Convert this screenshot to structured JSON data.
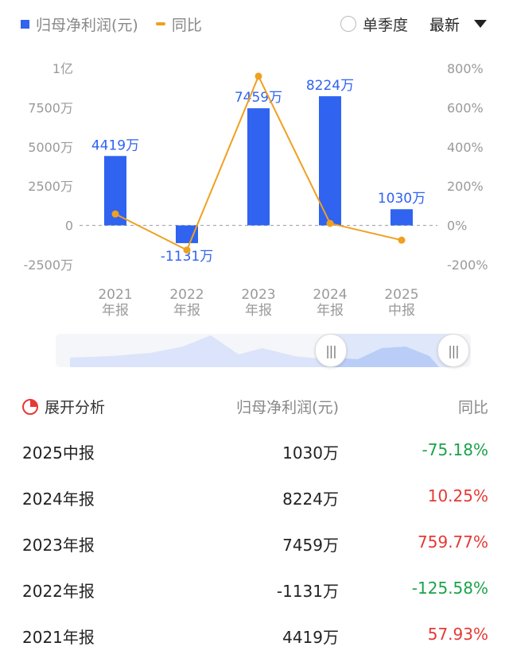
{
  "legend": {
    "bar_label": "归母净利润(元)",
    "line_label": "同比",
    "bar_color": "#2f63f0",
    "line_color": "#f0a020"
  },
  "toggle": {
    "label": "单季度"
  },
  "dropdown": {
    "label": "最新"
  },
  "chart_data": {
    "type": "bar",
    "categories": [
      [
        "2021",
        "年报"
      ],
      [
        "2022",
        "年报"
      ],
      [
        "2023",
        "年报"
      ],
      [
        "2024",
        "年报"
      ],
      [
        "2025",
        "中报"
      ]
    ],
    "series": [
      {
        "values": [
          4419,
          -1131,
          7459,
          8224,
          1030
        ],
        "labels": [
          "4419万",
          "-1131万",
          "7459万",
          "8224万",
          "1030万"
        ],
        "axis": "left",
        "type": "bar"
      },
      {
        "values": [
          57.93,
          -125.58,
          759.77,
          10.25,
          -75.18
        ],
        "axis": "right",
        "type": "line"
      }
    ],
    "y_left": {
      "ticks": [
        10000,
        7500,
        5000,
        2500,
        0,
        -2500
      ],
      "tick_labels": [
        "1亿",
        "7500万",
        "5000万",
        "2500万",
        "0",
        "-2500万"
      ],
      "ylim": [
        -2500,
        10000
      ]
    },
    "y_right": {
      "ticks": [
        800,
        600,
        400,
        200,
        0,
        -200
      ],
      "tick_labels": [
        "800%",
        "600%",
        "400%",
        "200%",
        "0%",
        "-200%"
      ],
      "ylim": [
        -200,
        800
      ]
    },
    "zero_line": "dashed"
  },
  "table": {
    "header": {
      "col1": "展开分析",
      "col2": "归母净利润(元)",
      "col3": "同比"
    },
    "rows": [
      {
        "period": "2025中报",
        "profit": "1030万",
        "yoy": "-75.18%",
        "dir": "down"
      },
      {
        "period": "2024年报",
        "profit": "8224万",
        "yoy": "10.25%",
        "dir": "up"
      },
      {
        "period": "2023年报",
        "profit": "7459万",
        "yoy": "759.77%",
        "dir": "up"
      },
      {
        "period": "2022年报",
        "profit": "-1131万",
        "yoy": "-125.58%",
        "dir": "down"
      },
      {
        "period": "2021年报",
        "profit": "4419万",
        "yoy": "57.93%",
        "dir": "up"
      }
    ]
  }
}
